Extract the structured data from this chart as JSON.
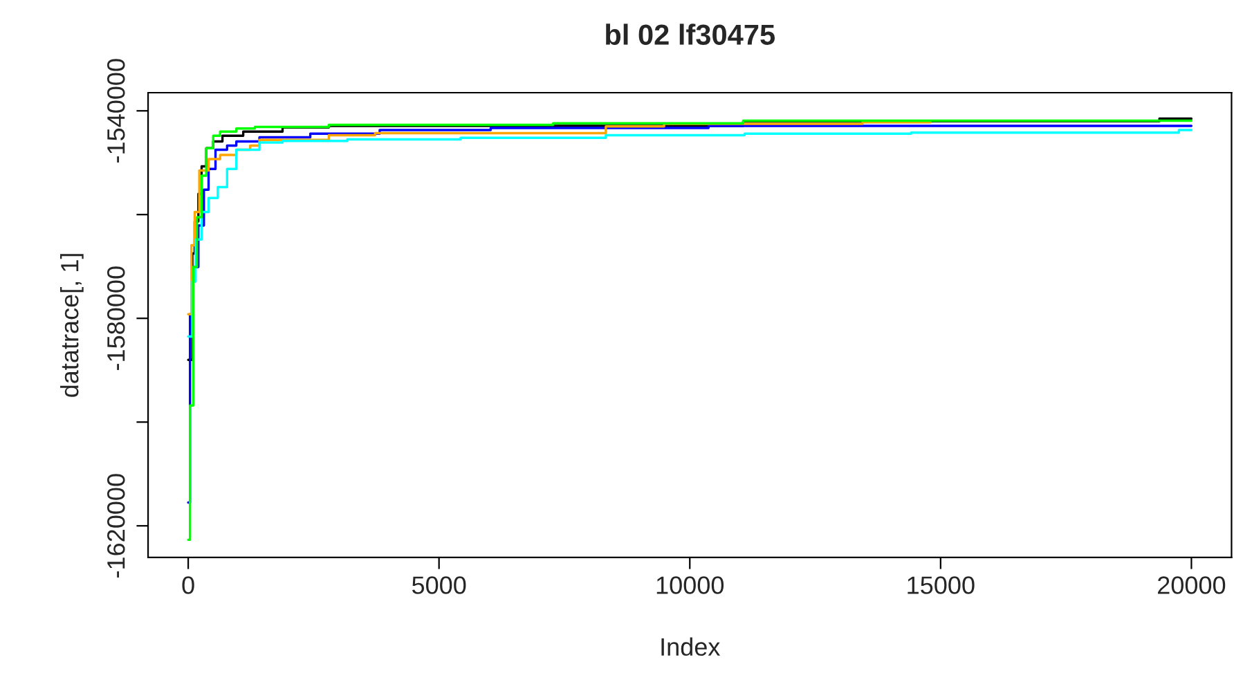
{
  "chart_data": {
    "type": "step",
    "title": "bl 02 lf30475",
    "xlabel": "Index",
    "ylabel": "datatrace[, 1]",
    "xlim": [
      -800,
      20800
    ],
    "ylim": [
      -1626100,
      -1536500
    ],
    "xticks": [
      0,
      5000,
      10000,
      15000,
      20000
    ],
    "yticks": [
      {
        "value": -1620000,
        "label": "-1620000"
      },
      {
        "value": -1600000,
        "label": null
      },
      {
        "value": -1580000,
        "label": "-1580000"
      },
      {
        "value": -1560000,
        "label": null
      },
      {
        "value": -1540000,
        "label": "-1540000"
      }
    ],
    "grid": false,
    "legend": false,
    "series": [
      {
        "color": "#000000",
        "x": [
          0,
          83,
          129,
          203,
          267,
          360,
          498,
          683,
          1097,
          1881,
          2803,
          11064,
          19362,
          20000
        ],
        "values": [
          -1588000,
          -1567500,
          -1561300,
          -1556000,
          -1550700,
          -1547200,
          -1545900,
          -1544800,
          -1544000,
          -1543200,
          -1542900,
          -1542000,
          -1541500,
          -1541500
        ]
      },
      {
        "color": "#0000ff",
        "x": [
          0,
          36,
          83,
          203,
          313,
          406,
          544,
          775,
          959,
          1420,
          2434,
          3817,
          6030,
          10373,
          20000
        ],
        "values": [
          -1615500,
          -1579200,
          -1570100,
          -1562100,
          -1555200,
          -1551200,
          -1547500,
          -1546700,
          -1545900,
          -1545100,
          -1544400,
          -1543700,
          -1543300,
          -1542900,
          -1542900
        ]
      },
      {
        "color": "#ffa500",
        "x": [
          0,
          64,
          129,
          221,
          406,
          636,
          959,
          1236,
          1420,
          2803,
          3725,
          8326,
          9488,
          13443,
          14798
        ],
        "values": [
          -1579200,
          -1565900,
          -1559500,
          -1551500,
          -1549300,
          -1548500,
          -1547500,
          -1546700,
          -1545600,
          -1544700,
          -1544300,
          -1543000,
          -1542500,
          -1542200,
          -1542200
        ]
      },
      {
        "color": "#00ffff",
        "x": [
          0,
          83,
          147,
          267,
          406,
          590,
          775,
          959,
          1420,
          1881,
          3172,
          5431,
          8326,
          11092,
          14411,
          19749,
          20000
        ],
        "values": [
          -1583500,
          -1572900,
          -1564800,
          -1559500,
          -1556800,
          -1554700,
          -1551200,
          -1547500,
          -1546100,
          -1545800,
          -1545500,
          -1545200,
          -1544700,
          -1544400,
          -1544200,
          -1543700,
          -1543700
        ]
      },
      {
        "color": "#00ff00",
        "x": [
          0,
          36,
          101,
          175,
          267,
          360,
          498,
          636,
          959,
          1328,
          2803,
          7275,
          11064,
          20000
        ],
        "values": [
          -1622700,
          -1596800,
          -1570100,
          -1560500,
          -1552500,
          -1547200,
          -1544800,
          -1544000,
          -1543400,
          -1543100,
          -1542700,
          -1542400,
          -1541900,
          -1541900
        ]
      }
    ]
  }
}
